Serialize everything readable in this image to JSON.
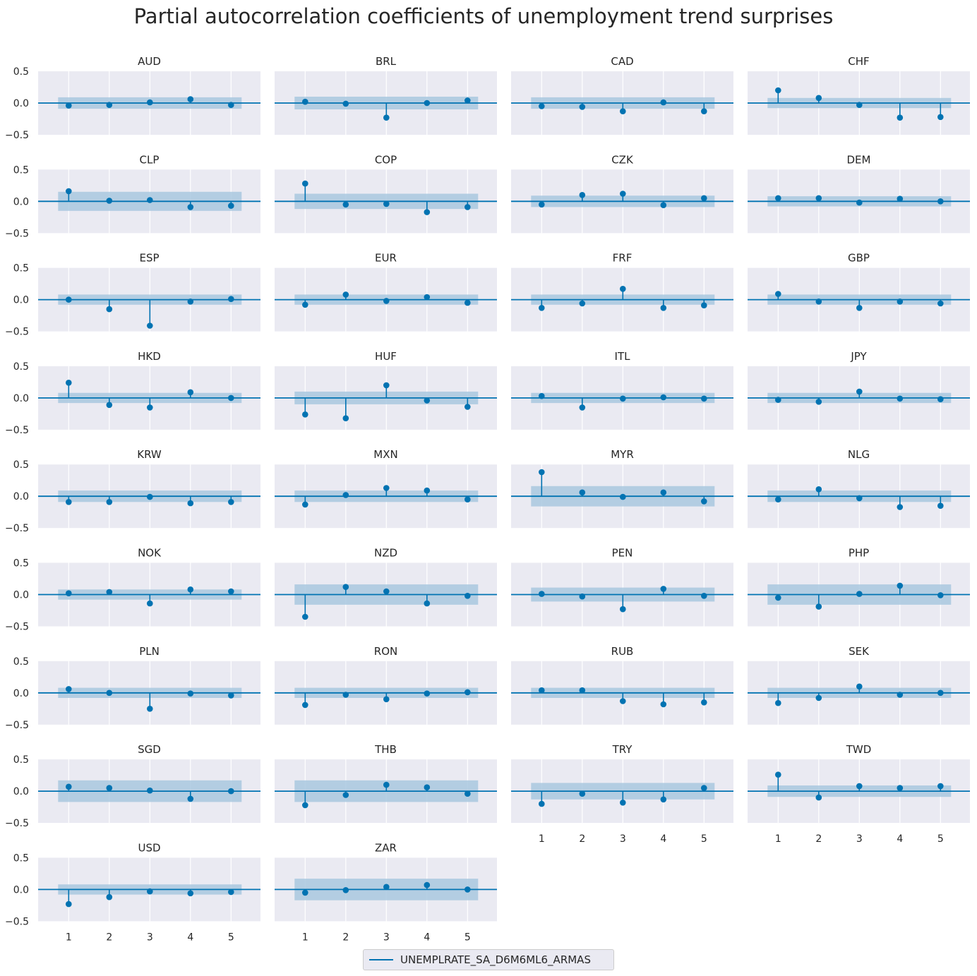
{
  "chart_data": {
    "type": "stem",
    "title": "Partial autocorrelation coefficients of unemployment trend surprises",
    "xlabel": "",
    "ylabel": "",
    "x": [
      1,
      2,
      3,
      4,
      5
    ],
    "ylim": [
      -0.5,
      0.5
    ],
    "yticks": [
      "0.5",
      "0.0",
      "−0.5"
    ],
    "xticks": [
      "1",
      "2",
      "3",
      "4",
      "5"
    ],
    "grid": true,
    "legend_position": "bottom-center",
    "series_name": "UNEMPLRATE_SA_D6M6ML6_ARMAS",
    "colors": {
      "series": "#0173b2",
      "band": "#a9c8df",
      "background": "#eaeaf2",
      "grid": "#ffffff",
      "text": "#262626"
    },
    "panels": [
      {
        "title": "AUD",
        "values": [
          -0.04,
          -0.03,
          0.01,
          0.06,
          -0.03
        ],
        "ci": 0.09
      },
      {
        "title": "BRL",
        "values": [
          0.02,
          -0.01,
          -0.23,
          0.0,
          0.04
        ],
        "ci": 0.1
      },
      {
        "title": "CAD",
        "values": [
          -0.05,
          -0.06,
          -0.13,
          0.01,
          -0.13
        ],
        "ci": 0.09
      },
      {
        "title": "CHF",
        "values": [
          0.2,
          0.08,
          -0.03,
          -0.23,
          -0.22
        ],
        "ci": 0.08
      },
      {
        "title": "CLP",
        "values": [
          0.16,
          0.01,
          0.02,
          -0.09,
          -0.07
        ],
        "ci": 0.15
      },
      {
        "title": "COP",
        "values": [
          0.28,
          -0.05,
          -0.04,
          -0.17,
          -0.09
        ],
        "ci": 0.12
      },
      {
        "title": "CZK",
        "values": [
          -0.05,
          0.1,
          0.12,
          -0.06,
          0.05
        ],
        "ci": 0.09
      },
      {
        "title": "DEM",
        "values": [
          0.05,
          0.05,
          -0.02,
          0.04,
          0.0
        ],
        "ci": 0.08
      },
      {
        "title": "ESP",
        "values": [
          0.0,
          -0.15,
          -0.41,
          -0.03,
          0.01
        ],
        "ci": 0.08
      },
      {
        "title": "EUR",
        "values": [
          -0.08,
          0.08,
          -0.02,
          0.04,
          -0.05
        ],
        "ci": 0.08
      },
      {
        "title": "FRF",
        "values": [
          -0.13,
          -0.06,
          0.17,
          -0.13,
          -0.09
        ],
        "ci": 0.08
      },
      {
        "title": "GBP",
        "values": [
          0.09,
          -0.03,
          -0.13,
          -0.03,
          -0.06
        ],
        "ci": 0.08
      },
      {
        "title": "HKD",
        "values": [
          0.24,
          -0.11,
          -0.15,
          0.09,
          0.0
        ],
        "ci": 0.08
      },
      {
        "title": "HUF",
        "values": [
          -0.26,
          -0.32,
          0.2,
          -0.04,
          -0.14
        ],
        "ci": 0.1
      },
      {
        "title": "ITL",
        "values": [
          0.03,
          -0.15,
          -0.01,
          0.01,
          -0.01
        ],
        "ci": 0.08
      },
      {
        "title": "JPY",
        "values": [
          -0.03,
          -0.06,
          0.1,
          -0.01,
          -0.02
        ],
        "ci": 0.08
      },
      {
        "title": "KRW",
        "values": [
          -0.09,
          -0.09,
          -0.01,
          -0.11,
          -0.09
        ],
        "ci": 0.09
      },
      {
        "title": "MXN",
        "values": [
          -0.13,
          0.02,
          0.13,
          0.09,
          -0.05
        ],
        "ci": 0.09
      },
      {
        "title": "MYR",
        "values": [
          0.38,
          0.06,
          -0.01,
          0.06,
          -0.08
        ],
        "ci": 0.16
      },
      {
        "title": "NLG",
        "values": [
          -0.05,
          0.11,
          -0.03,
          -0.17,
          -0.15
        ],
        "ci": 0.09
      },
      {
        "title": "NOK",
        "values": [
          0.02,
          0.04,
          -0.14,
          0.08,
          0.05
        ],
        "ci": 0.08
      },
      {
        "title": "NZD",
        "values": [
          -0.35,
          0.12,
          0.05,
          -0.14,
          -0.02
        ],
        "ci": 0.16
      },
      {
        "title": "PEN",
        "values": [
          0.01,
          -0.03,
          -0.23,
          0.09,
          -0.02
        ],
        "ci": 0.11
      },
      {
        "title": "PHP",
        "values": [
          -0.05,
          -0.19,
          0.01,
          0.14,
          -0.01
        ],
        "ci": 0.16
      },
      {
        "title": "PLN",
        "values": [
          0.06,
          0.0,
          -0.25,
          -0.01,
          -0.04
        ],
        "ci": 0.08
      },
      {
        "title": "RON",
        "values": [
          -0.19,
          -0.03,
          -0.1,
          -0.01,
          0.01
        ],
        "ci": 0.08
      },
      {
        "title": "RUB",
        "values": [
          0.04,
          0.04,
          -0.13,
          -0.18,
          -0.15
        ],
        "ci": 0.08
      },
      {
        "title": "SEK",
        "values": [
          -0.16,
          -0.08,
          0.1,
          -0.03,
          0.0
        ],
        "ci": 0.08
      },
      {
        "title": "SGD",
        "values": [
          0.07,
          0.05,
          0.01,
          -0.12,
          0.0
        ],
        "ci": 0.17
      },
      {
        "title": "THB",
        "values": [
          -0.22,
          -0.06,
          0.1,
          0.06,
          -0.04
        ],
        "ci": 0.17
      },
      {
        "title": "TRY",
        "values": [
          -0.2,
          -0.04,
          -0.18,
          -0.13,
          0.05
        ],
        "ci": 0.13
      },
      {
        "title": "TWD",
        "values": [
          0.26,
          -0.1,
          0.08,
          0.05,
          0.08
        ],
        "ci": 0.09
      },
      {
        "title": "USD",
        "values": [
          -0.23,
          -0.12,
          -0.03,
          -0.06,
          -0.04
        ],
        "ci": 0.08
      },
      {
        "title": "ZAR",
        "values": [
          -0.05,
          -0.01,
          0.04,
          0.07,
          0.0
        ],
        "ci": 0.17
      }
    ]
  }
}
